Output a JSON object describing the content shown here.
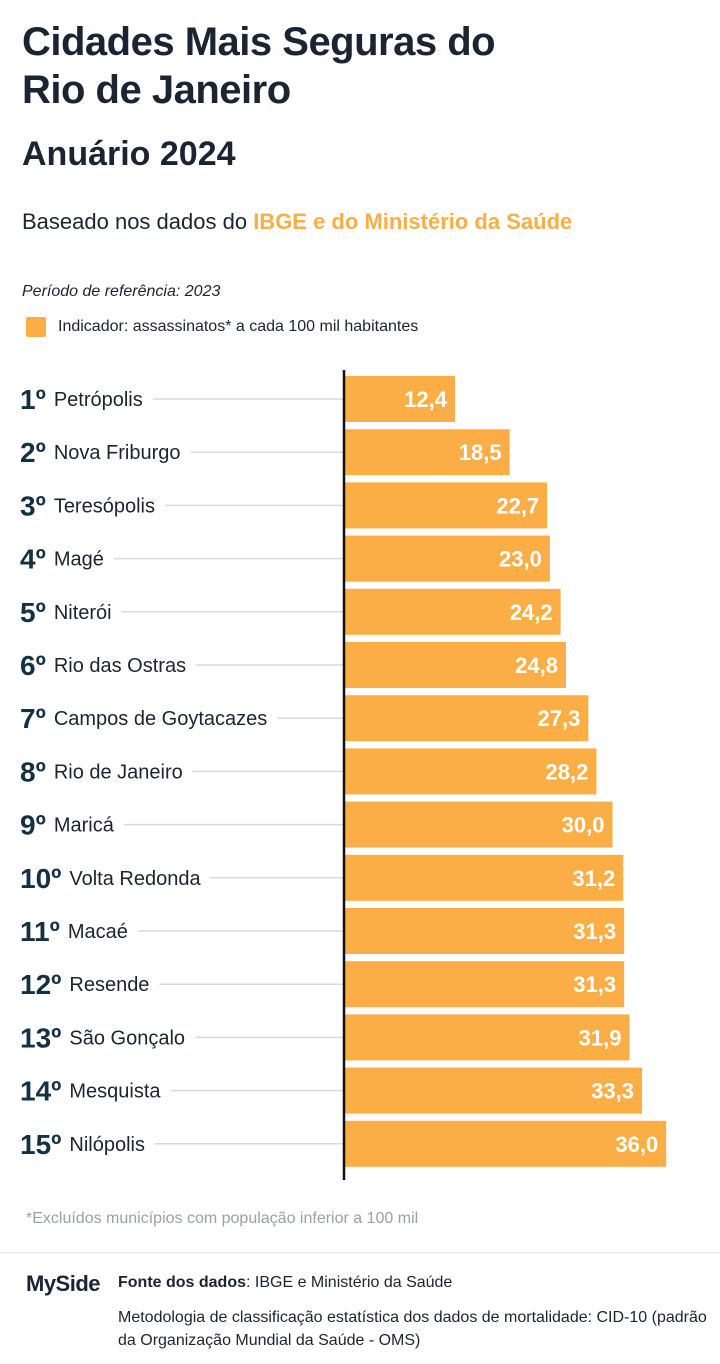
{
  "header": {
    "title_line1": "Cidades Mais Seguras do",
    "title_line2": "Rio de Janeiro",
    "subtitle": "Anuário 2024",
    "basis_prefix": "Baseado nos dados do ",
    "basis_highlight": "IBGE e do Ministério da Saúde",
    "period": "Período de referência: 2023",
    "legend_label": "Indicador: assassinatos* a cada 100 mil habitantes"
  },
  "colors": {
    "bar": "#fbae45",
    "rank": "#133045",
    "text": "#1b2433",
    "leader": "#d9d9d9",
    "axis": "#111111"
  },
  "chart_data": {
    "type": "bar",
    "orientation": "horizontal",
    "categories": [
      "Petrópolis",
      "Nova Friburgo",
      "Teresópolis",
      "Magé",
      "Niterói",
      "Rio das Ostras",
      "Campos de Goytacazes",
      "Rio de Janeiro",
      "Maricá",
      "Volta Redonda",
      "Macaé",
      "Resende",
      "São Gonçalo",
      "Mesquista",
      "Nilópolis"
    ],
    "ranks": [
      "1º",
      "2º",
      "3º",
      "4º",
      "5º",
      "6º",
      "7º",
      "8º",
      "9º",
      "10º",
      "11º",
      "12º",
      "13º",
      "14º",
      "15º"
    ],
    "values": [
      12.4,
      18.5,
      22.7,
      23.0,
      24.2,
      24.8,
      27.3,
      28.2,
      30.0,
      31.2,
      31.3,
      31.3,
      31.9,
      33.3,
      36.0
    ],
    "value_labels": [
      "12,4",
      "18,5",
      "22,7",
      "23,0",
      "24,2",
      "24,8",
      "27,3",
      "28,2",
      "30,0",
      "31,2",
      "31,3",
      "31,3",
      "31,9",
      "33,3",
      "36,0"
    ],
    "legend": [
      "Indicador: assassinatos* a cada 100 mil habitantes"
    ],
    "data_labels": true,
    "grid": false
  },
  "footer": {
    "footnote": "*Excluídos municípios com população inferior a 100 mil",
    "logo": "MySide",
    "source_label": "Fonte dos dados",
    "source_text": ": IBGE e Ministério da Saúde",
    "methodology": "Metodologia de classificação estatística dos dados de mortalidade: CID-10 (padrão da Organização Mundial da Saúde - OMS)"
  }
}
